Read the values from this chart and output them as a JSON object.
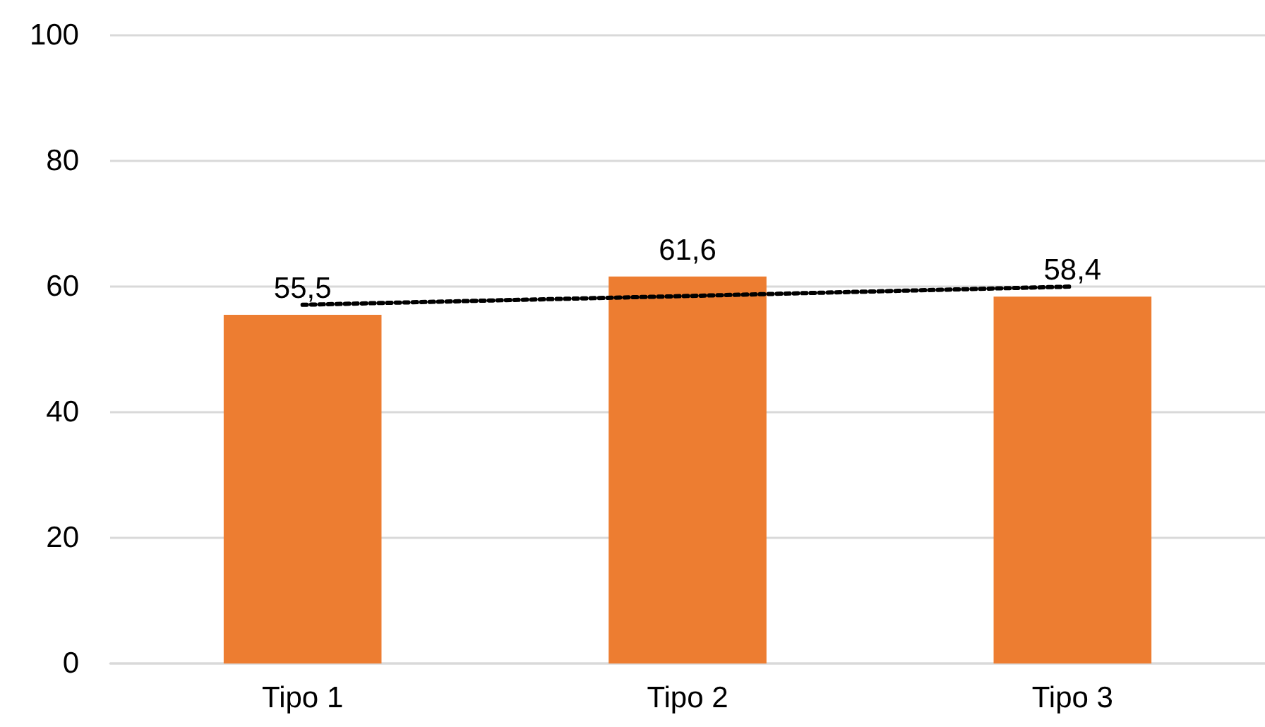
{
  "chart_data": {
    "type": "bar",
    "categories": [
      "Tipo 1",
      "Tipo 2",
      "Tipo 3"
    ],
    "series": [
      {
        "color": "#ed7d31",
        "values": [
          55.5,
          61.6,
          58.4
        ],
        "value_labels": [
          "55,5",
          "61,6",
          "58,4"
        ]
      },
      {
        "type": "line",
        "x": [
          "Tipo 1",
          "Tipo 2",
          "Tipo 3"
        ],
        "values": [
          57.1,
          58.5,
          60.0
        ],
        "color": "#000000",
        "line_style": "dotted",
        "marker": "none"
      }
    ],
    "ylim": [
      0,
      100
    ],
    "yticks": [
      0,
      20,
      40,
      60,
      80,
      100
    ],
    "grid": "y"
  }
}
